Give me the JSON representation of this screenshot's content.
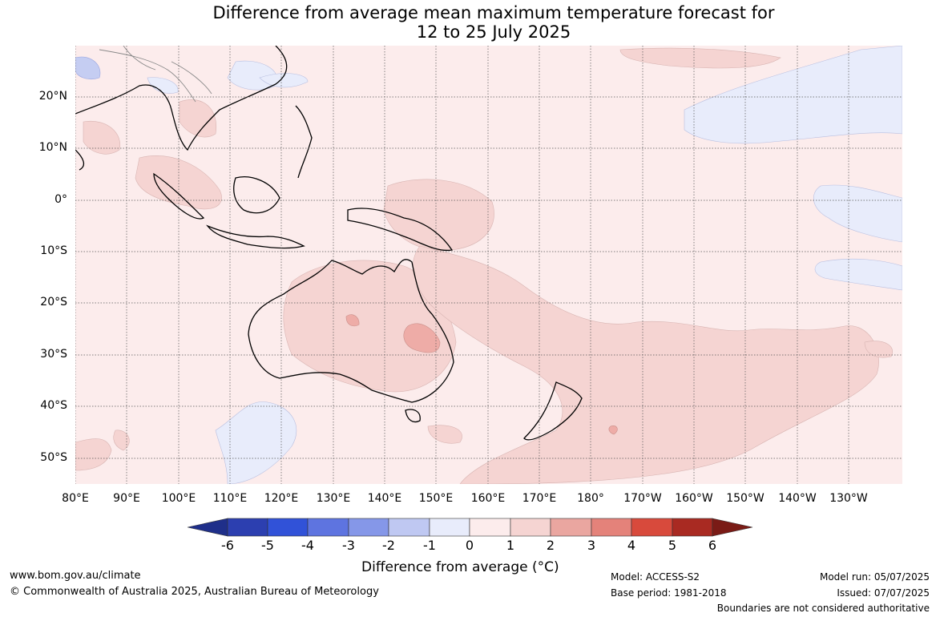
{
  "title_line1": "Difference from average mean maximum temperature forecast for",
  "title_line2": "12 to 25 July 2025",
  "lat_labels": [
    "20°N",
    "10°N",
    "0°",
    "10°S",
    "20°S",
    "30°S",
    "40°S",
    "50°S"
  ],
  "lon_labels": [
    "80°E",
    "90°E",
    "100°E",
    "110°E",
    "120°E",
    "130°E",
    "140°E",
    "150°E",
    "160°E",
    "170°E",
    "180°",
    "170°W",
    "160°W",
    "150°W",
    "140°W",
    "130°W"
  ],
  "colorbar": {
    "ticks": [
      "-6",
      "-5",
      "-4",
      "-3",
      "-2",
      "-1",
      "0",
      "1",
      "2",
      "3",
      "4",
      "5",
      "6"
    ],
    "colors": [
      "#1f2f8a",
      "#2c3fb0",
      "#3152d8",
      "#5e74e0",
      "#8597e8",
      "#bfc8f2",
      "#e8ecfb",
      "#fcecec",
      "#f5d4d2",
      "#eaa6a0",
      "#e4827a",
      "#d84a3c",
      "#a92a22",
      "#7a1b16"
    ],
    "title": "Difference from average (°C)"
  },
  "footer": {
    "website": "www.bom.gov.au/climate",
    "copyright": "© Commonwealth of Australia 2025, Australian Bureau of Meteorology",
    "model": "Model: ACCESS-S2",
    "base_period": "Base period: 1981-2018",
    "model_run": "Model run: 05/07/2025",
    "issued": "Issued: 07/07/2025",
    "disclaimer": "Boundaries are not considered authoritative"
  },
  "fill_colors": {
    "background": "#fcecec",
    "warm": "#f5d4d2",
    "warmer": "#eeaca7",
    "cool": "#e8ecfb",
    "cooler": "#c5cdf2"
  }
}
